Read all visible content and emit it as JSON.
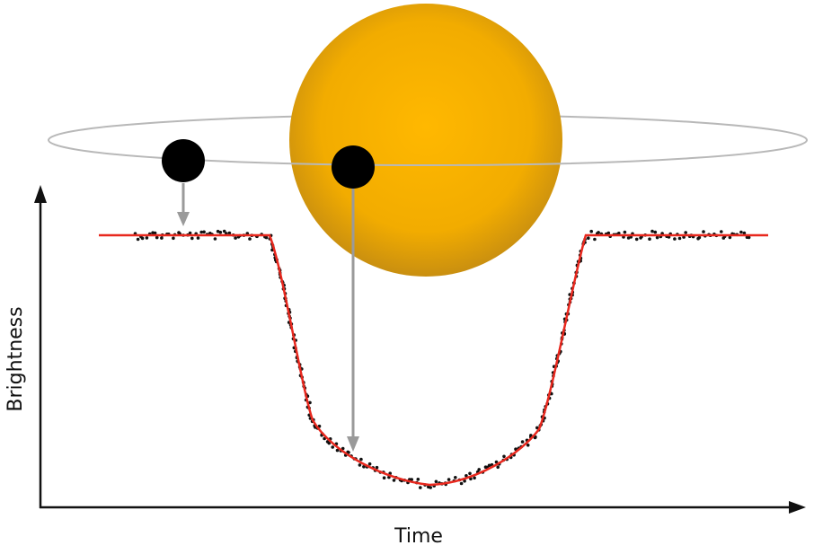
{
  "axes": {
    "x_label": "Time",
    "y_label": "Brightness"
  }
}
